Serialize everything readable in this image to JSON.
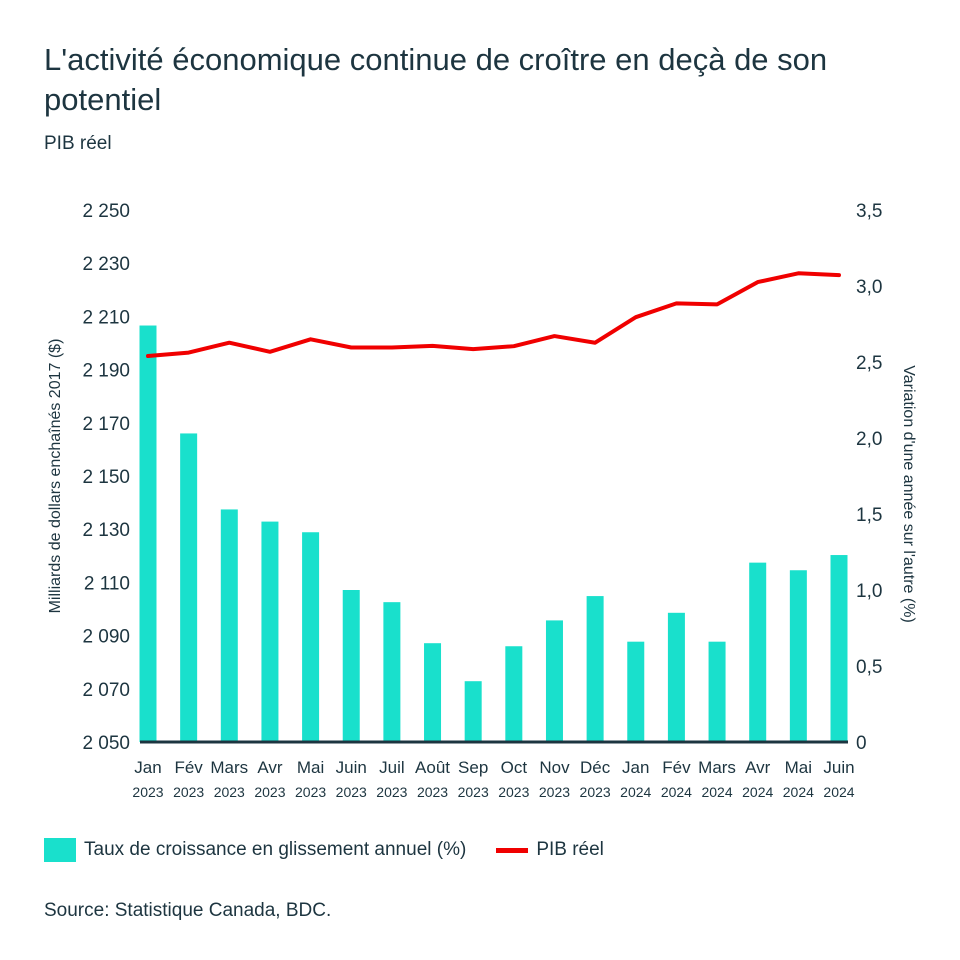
{
  "title": "L'activité économique continue de croître en deçà de son potentiel",
  "subtitle": "PIB réel",
  "source": "Source: Statistique Canada, BDC.",
  "colors": {
    "bars": "#19e0cc",
    "line": "#f00000",
    "axis": "#1d3540"
  },
  "chart_data": {
    "type": "bar+line",
    "categories": [
      "Jan|2023",
      "Fév|2023",
      "Mars|2023",
      "Avr|2023",
      "Mai|2023",
      "Juin|2023",
      "Juil|2023",
      "Août|2023",
      "Sep|2023",
      "Oct|2023",
      "Nov|2023",
      "Déc|2023",
      "Jan|2024",
      "Fév|2024",
      "Mars|2024",
      "Avr|2024",
      "Mai|2024",
      "Juin|2024"
    ],
    "ylabel_left": "Milliards de dollars enchaînés 2017 ($)",
    "ylabel_right": "Variation d'une année sur l'autre (%)",
    "ylim_left": [
      2050,
      2250
    ],
    "yticks_left": [
      "2 050",
      "2 070",
      "2 090",
      "2 110",
      "2 130",
      "2 150",
      "2 170",
      "2 190",
      "2 210",
      "2 230",
      "2 250"
    ],
    "ylim_right": [
      0,
      3.5
    ],
    "yticks_right": [
      "0",
      "0,5",
      "1,0",
      "1,5",
      "2,0",
      "2,5",
      "3,0",
      "3,5"
    ],
    "grid": false,
    "legend_position": "bottom",
    "series": [
      {
        "name": "Taux de croissance en glissement annuel (%)",
        "type": "bar",
        "axis": "right",
        "values": [
          2.74,
          2.03,
          1.53,
          1.45,
          1.38,
          1.0,
          0.92,
          0.65,
          0.4,
          0.63,
          0.8,
          0.96,
          0.66,
          0.85,
          0.66,
          1.18,
          1.13,
          1.23
        ]
      },
      {
        "name": "PIB réel",
        "type": "line",
        "axis": "left",
        "values": [
          2195.1,
          2196.4,
          2200.1,
          2196.7,
          2201.4,
          2198.3,
          2198.3,
          2198.9,
          2197.7,
          2198.8,
          2202.6,
          2200.1,
          2209.7,
          2214.9,
          2214.5,
          2222.9,
          2226.2,
          2225.5
        ]
      }
    ]
  }
}
